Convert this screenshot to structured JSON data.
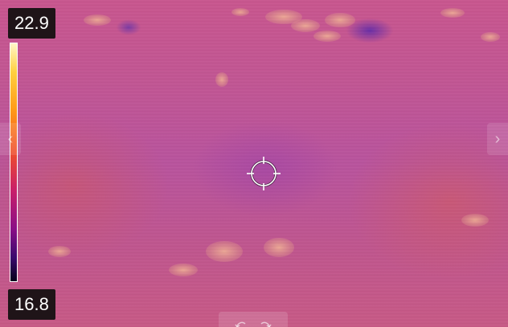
{
  "scale": {
    "max_temp": "22.9",
    "min_temp": "16.8",
    "palette": [
      "#fff7c8",
      "#ffd040",
      "#ff9a18",
      "#f0502a",
      "#c81e6a",
      "#8a0f86",
      "#3a0a6e",
      "#06001a"
    ]
  },
  "navigation": {
    "prev_icon": "chevron-left-icon",
    "prev_glyph": "‹",
    "next_icon": "chevron-right-icon",
    "next_glyph": "›"
  },
  "bottom_toolbar": {
    "icons": [
      "rotate-left-icon",
      "rotate-right-icon"
    ]
  },
  "crosshair": {
    "icon": "spot-meter-crosshair-icon"
  },
  "colors": {
    "label_background": "#1f1418",
    "label_text": "#ffffff"
  }
}
